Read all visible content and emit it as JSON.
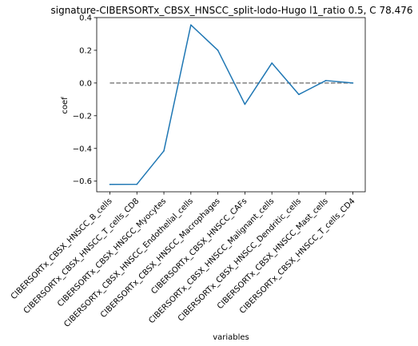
{
  "chart_data": {
    "type": "line",
    "title": "signature-CIBERSORTx_CBSX_HNSCC_split-lodo-Hugo l1_ratio 0.5, C 78.476",
    "xlabel": "variables",
    "ylabel": "coef",
    "categories": [
      "CIBERSORTx_CBSX_HNSCC_B_cells",
      "CIBERSORTx_CBSX_HNSCC_T_cells_CD8",
      "CIBERSORTx_CBSX_HNSCC_Myocytes",
      "CIBERSORTx_CBSX_HNSCC_Endothelial_cells",
      "CIBERSORTx_CBSX_HNSCC_Macrophages",
      "CIBERSORTx_CBSX_HNSCC_CAFs",
      "CIBERSORTx_CBSX_HNSCC_Malignant_cells",
      "CIBERSORTx_CBSX_HNSCC_Dendritic_cells",
      "CIBERSORTx_CBSX_HNSCC_Mast_cells",
      "CIBERSORTx_CBSX_HNSCC_T_cells_CD4"
    ],
    "values": [
      -0.62,
      -0.619,
      -0.415,
      0.355,
      0.2,
      -0.13,
      0.122,
      -0.07,
      0.015,
      0.0
    ],
    "ylim": [
      -0.665,
      0.4
    ],
    "yticks": [
      -0.6,
      -0.4,
      -0.2,
      0.0,
      0.2,
      0.4
    ],
    "ytick_labels": [
      "−0.6",
      "−0.4",
      "−0.2",
      "0.0",
      "0.2",
      "0.4"
    ],
    "reference_line": {
      "y": 0.0,
      "style": "dashed",
      "color": "#808080"
    },
    "series_color": "#1f77b4",
    "grid": false
  }
}
